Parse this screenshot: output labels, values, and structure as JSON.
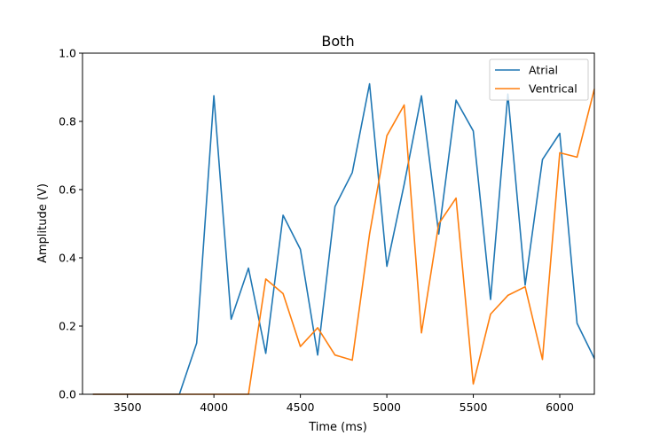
{
  "chart_data": {
    "type": "line",
    "title": "Both",
    "xlabel": "Time (ms)",
    "ylabel": "Amplitude (V)",
    "xlim": [
      3240,
      6200
    ],
    "ylim": [
      0,
      1.0
    ],
    "xticks": [
      3500,
      4000,
      4500,
      5000,
      5500,
      6000
    ],
    "yticks": [
      0.0,
      0.2,
      0.4,
      0.6,
      0.8,
      1.0
    ],
    "xtick_labels": [
      "3500",
      "4000",
      "4500",
      "5000",
      "5500",
      "6000"
    ],
    "ytick_labels": [
      "0.0",
      "0.2",
      "0.4",
      "0.6",
      "0.8",
      "1.0"
    ],
    "grid": false,
    "legend_position": "top-right",
    "x": [
      3300,
      3400,
      3500,
      3600,
      3700,
      3800,
      3900,
      4000,
      4100,
      4200,
      4300,
      4400,
      4500,
      4600,
      4700,
      4800,
      4900,
      5000,
      5100,
      5200,
      5300,
      5400,
      5500,
      5600,
      5700,
      5800,
      5900,
      6000,
      6100,
      6200
    ],
    "series": [
      {
        "name": "Atrial",
        "color": "#1f77b4",
        "values": [
          0,
          0,
          0,
          0,
          0,
          0,
          0.15,
          0.875,
          0.22,
          0.37,
          0.12,
          0.525,
          0.425,
          0.115,
          0.55,
          0.65,
          0.91,
          0.375,
          0.615,
          0.875,
          0.47,
          0.862,
          0.772,
          0.278,
          0.88,
          0.32,
          0.688,
          0.765,
          0.208,
          0.105
        ]
      },
      {
        "name": "Ventrical",
        "color": "#ff7f0e",
        "values": [
          0,
          0,
          0,
          0,
          0,
          0,
          0,
          0,
          0,
          0,
          0.338,
          0.295,
          0.14,
          0.195,
          0.115,
          0.1,
          0.47,
          0.758,
          0.848,
          0.18,
          0.5,
          0.575,
          0.03,
          0.235,
          0.29,
          0.315,
          0.102,
          0.708,
          0.695,
          0.895
        ]
      }
    ]
  }
}
